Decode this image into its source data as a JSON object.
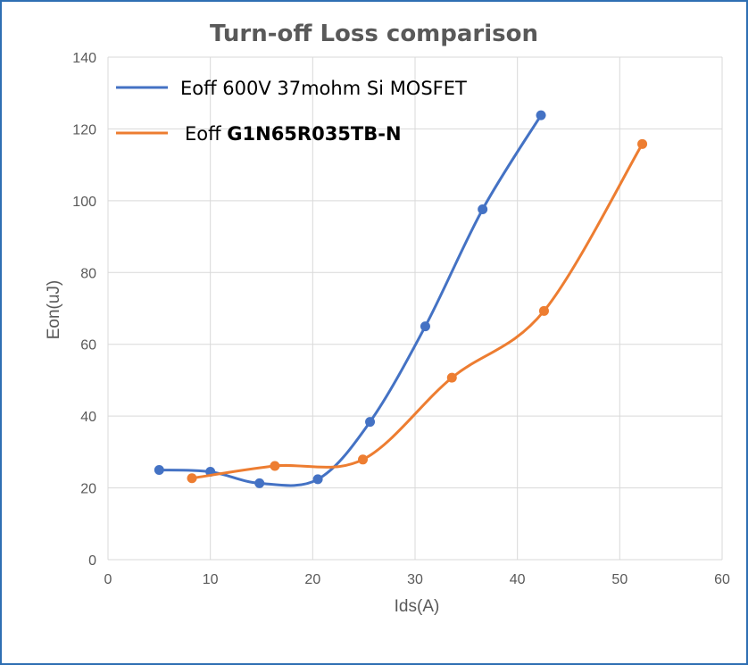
{
  "chart_data": {
    "type": "scatter",
    "title": "Turn-off Loss comparison",
    "xlabel": "Ids(A)",
    "ylabel": "Eon(uJ)",
    "xlim": [
      0,
      60
    ],
    "ylim": [
      0,
      140
    ],
    "x_ticks": [
      "0",
      "10",
      "20",
      "30",
      "40",
      "50",
      "60"
    ],
    "y_ticks": [
      "0",
      "20",
      "40",
      "60",
      "80",
      "100",
      "120",
      "140"
    ],
    "grid": true,
    "smooth_lines": true,
    "legend_position": "top-left",
    "series": [
      {
        "name": "Eoff  600V 37mohm Si MOSFET",
        "legend_prefix": "Eoff  600V 37mohm Si MOSFET",
        "legend_bold": "",
        "color": "#4472c4",
        "x": [
          5,
          10,
          14.8,
          20.5,
          25.6,
          31.0,
          36.6,
          42.3
        ],
        "y": [
          25,
          24.5,
          21.3,
          22.4,
          38.4,
          65,
          97.6,
          123.8
        ]
      },
      {
        "name": "Eoff G1N65R035TB-N",
        "legend_prefix": "Eoff ",
        "legend_bold": "G1N65R035TB-N",
        "color": "#ed7d31",
        "x": [
          8.2,
          16.3,
          24.9,
          33.6,
          42.6,
          52.2
        ],
        "y": [
          22.7,
          26.1,
          27.9,
          50.7,
          69.3,
          115.8
        ]
      }
    ]
  }
}
